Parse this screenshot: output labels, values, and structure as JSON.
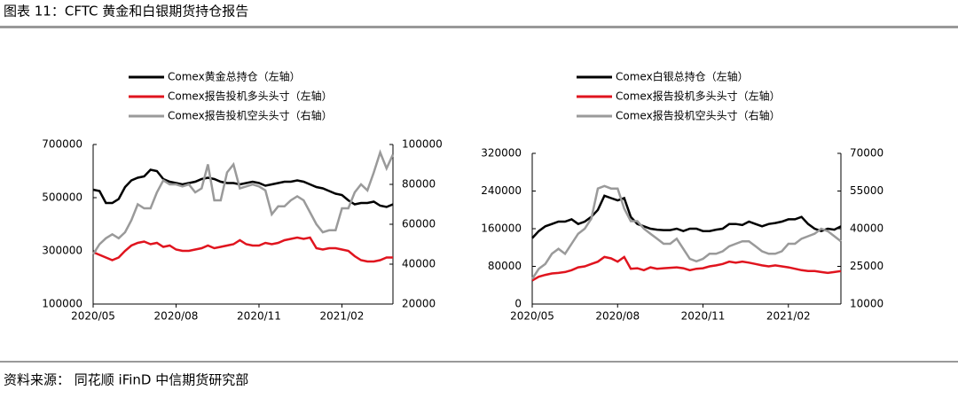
{
  "title": "图表 11：CFTC 黄金和白银期货持仓报告",
  "source": "资料来源：  同花顺 iFinD  中信期货研究部",
  "chart_data": [
    {
      "type": "line",
      "legend": "top-left",
      "categories": [
        "2020/05",
        null,
        null,
        null,
        null,
        null,
        null,
        null,
        null,
        null,
        null,
        null,
        null,
        "2020/08",
        null,
        null,
        null,
        null,
        null,
        null,
        null,
        null,
        null,
        null,
        null,
        null,
        "2020/11",
        null,
        null,
        null,
        null,
        null,
        null,
        null,
        null,
        null,
        null,
        null,
        null,
        "2021/02",
        null,
        null,
        null,
        null,
        null,
        null,
        null,
        null
      ],
      "ylim": [
        100000,
        700000
      ],
      "yticks": [
        100000,
        300000,
        500000,
        700000
      ],
      "y2lim": [
        20000,
        100000
      ],
      "y2ticks": [
        20000,
        40000,
        60000,
        80000,
        100000
      ],
      "series": [
        {
          "name": "Comex黄金总持仓（左轴）",
          "color": "#000000",
          "values": [
            530000,
            525000,
            480000,
            480000,
            495000,
            540000,
            565000,
            575000,
            580000,
            605000,
            600000,
            570000,
            560000,
            555000,
            550000,
            555000,
            560000,
            570000,
            575000,
            570000,
            560000,
            555000,
            555000,
            550000,
            555000,
            560000,
            555000,
            545000,
            550000,
            555000,
            560000,
            560000,
            565000,
            560000,
            550000,
            540000,
            535000,
            525000,
            515000,
            510000,
            490000,
            475000,
            480000,
            480000,
            485000,
            470000,
            465000,
            475000
          ]
        },
        {
          "name": "Comex报告投机多头头寸（左轴）",
          "color": "#e0141e",
          "values": [
            295000,
            285000,
            275000,
            265000,
            275000,
            300000,
            320000,
            330000,
            335000,
            325000,
            330000,
            315000,
            320000,
            305000,
            300000,
            300000,
            305000,
            310000,
            320000,
            310000,
            315000,
            320000,
            325000,
            340000,
            325000,
            320000,
            320000,
            330000,
            325000,
            330000,
            340000,
            345000,
            350000,
            345000,
            350000,
            310000,
            305000,
            310000,
            310000,
            305000,
            300000,
            280000,
            265000,
            260000,
            260000,
            265000,
            275000,
            275000
          ]
        },
        {
          "name": "Comex报告投机空头头寸（右轴）",
          "color": "#9a9a9a",
          "axis": "y2",
          "values": [
            45000,
            50000,
            53000,
            55000,
            53000,
            56000,
            62000,
            70000,
            68000,
            68000,
            76000,
            82000,
            80000,
            80000,
            79000,
            80000,
            76000,
            78000,
            90000,
            72000,
            72000,
            86000,
            90000,
            78000,
            79000,
            80000,
            79000,
            77000,
            65000,
            69000,
            69000,
            72000,
            74000,
            72000,
            66000,
            60000,
            56000,
            57000,
            57000,
            68000,
            68000,
            76000,
            80000,
            77000,
            86000,
            96000,
            88000,
            95000
          ]
        }
      ]
    },
    {
      "type": "line",
      "legend": "top-left",
      "categories": [
        "2020/05",
        null,
        null,
        null,
        null,
        null,
        null,
        null,
        null,
        null,
        null,
        null,
        null,
        "2020/08",
        null,
        null,
        null,
        null,
        null,
        null,
        null,
        null,
        null,
        null,
        null,
        null,
        "2020/11",
        null,
        null,
        null,
        null,
        null,
        null,
        null,
        null,
        null,
        null,
        null,
        null,
        "2021/02",
        null,
        null,
        null,
        null,
        null,
        null,
        null,
        null
      ],
      "ylim": [
        0,
        320000
      ],
      "yticks": [
        0,
        80000,
        160000,
        240000,
        320000
      ],
      "y2lim": [
        10000,
        70000
      ],
      "y2ticks": [
        10000,
        25000,
        40000,
        55000,
        70000
      ],
      "series": [
        {
          "name": "Comex白银总持仓（左轴）",
          "color": "#000000",
          "values": [
            140000,
            155000,
            165000,
            170000,
            175000,
            175000,
            180000,
            170000,
            175000,
            185000,
            200000,
            230000,
            225000,
            220000,
            225000,
            185000,
            170000,
            165000,
            160000,
            158000,
            157000,
            157000,
            160000,
            155000,
            160000,
            160000,
            155000,
            155000,
            158000,
            160000,
            170000,
            170000,
            168000,
            175000,
            170000,
            165000,
            170000,
            172000,
            175000,
            180000,
            180000,
            185000,
            170000,
            160000,
            155000,
            160000,
            158000,
            165000
          ]
        },
        {
          "name": "Comex报告投机多头头寸（左轴）",
          "color": "#e0141e",
          "values": [
            50000,
            58000,
            62000,
            65000,
            66000,
            68000,
            72000,
            78000,
            80000,
            85000,
            90000,
            100000,
            97000,
            90000,
            100000,
            75000,
            76000,
            72000,
            78000,
            75000,
            76000,
            77000,
            78000,
            76000,
            72000,
            75000,
            76000,
            80000,
            82000,
            85000,
            90000,
            88000,
            90000,
            88000,
            85000,
            82000,
            80000,
            82000,
            80000,
            78000,
            75000,
            72000,
            70000,
            70000,
            68000,
            66000,
            68000,
            70000
          ]
        },
        {
          "name": "Comex报告投机空头头寸（右轴）",
          "color": "#9a9a9a",
          "axis": "y2",
          "values": [
            20000,
            24000,
            26000,
            30000,
            32000,
            30000,
            34000,
            38000,
            40000,
            44000,
            56000,
            57000,
            56000,
            56000,
            48000,
            43000,
            43000,
            40000,
            38000,
            36000,
            34000,
            34000,
            36000,
            32000,
            28000,
            27000,
            28000,
            30000,
            30000,
            31000,
            33000,
            34000,
            35000,
            35000,
            33000,
            31000,
            30000,
            30000,
            31000,
            34000,
            34000,
            36000,
            37000,
            38000,
            40000,
            39000,
            37000,
            35000
          ]
        }
      ]
    }
  ]
}
